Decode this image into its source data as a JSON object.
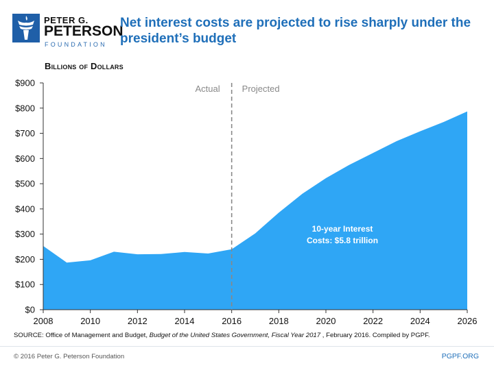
{
  "logo": {
    "line1": "PETER G.",
    "line2": "PETERSON",
    "line3": "FOUNDATION",
    "icon": "torch-icon"
  },
  "title": "Net interest costs are projected to rise sharply under the president’s budget",
  "units_label": "Billions of Dollars",
  "source": {
    "prefix": "SOURCE: Office of Management and Budget, ",
    "italic": "Budget of the United States Government, Fiscal Year 2017",
    "suffix": " , February 2016. Compiled by PGPF."
  },
  "footer": {
    "copyright": "© 2016 Peter G. Peterson Foundation",
    "site": "PGPF.ORG"
  },
  "colors": {
    "area": "#2fa6f5",
    "title": "#1f6fb9",
    "divider": "#888888"
  },
  "chart_data": {
    "type": "area",
    "title": "Net interest costs are projected to rise sharply under the president’s budget",
    "ylabel": "Billions of Dollars",
    "xlabel": "",
    "x": [
      2008,
      2009,
      2010,
      2011,
      2012,
      2013,
      2014,
      2015,
      2016,
      2017,
      2018,
      2019,
      2020,
      2021,
      2022,
      2023,
      2024,
      2025,
      2026
    ],
    "series": [
      {
        "values": [
          253,
          187,
          196,
          230,
          220,
          221,
          229,
          223,
          240,
          303,
          385,
          460,
          522,
          575,
          622,
          669,
          708,
          745,
          787
        ]
      }
    ],
    "xlim": [
      2008,
      2026
    ],
    "ylim": [
      0,
      900
    ],
    "x_ticks": [
      2008,
      2010,
      2012,
      2014,
      2016,
      2018,
      2020,
      2022,
      2024,
      2026
    ],
    "y_ticks": [
      0,
      100,
      200,
      300,
      400,
      500,
      600,
      700,
      800,
      900
    ],
    "y_tick_labels": [
      "$0",
      "$100",
      "$200",
      "$300",
      "$400",
      "$500",
      "$600",
      "$700",
      "$800",
      "$900"
    ],
    "divider": {
      "x": 2016,
      "left_label": "Actual",
      "right_label": "Projected"
    },
    "annotation": {
      "line1": "10-year Interest",
      "line2": "Costs: $5.8 trillion",
      "x": 2020.7,
      "y": 315
    },
    "grid": false,
    "legend": "none"
  }
}
